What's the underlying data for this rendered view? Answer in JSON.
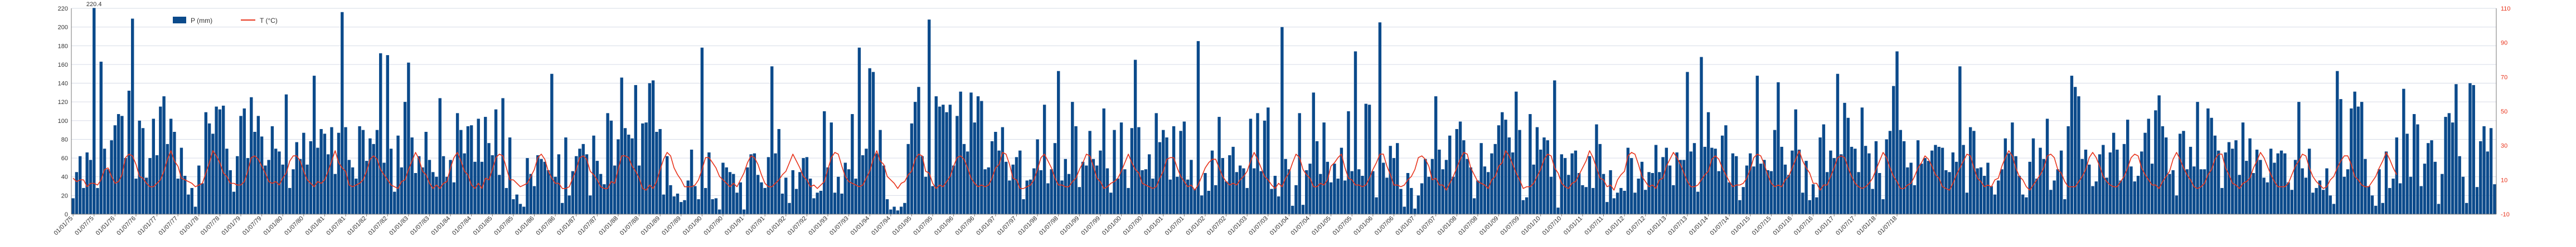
{
  "chart_data": {
    "type": "bar",
    "legend_position": "top-left",
    "grid": true,
    "series": [
      {
        "name": "P (mm)",
        "kind": "bar",
        "axis": "left",
        "color": "#0b4a8b"
      },
      {
        "name": "T (°C)",
        "kind": "line",
        "axis": "right",
        "color": "#e8341c"
      }
    ],
    "y_left": {
      "ticks": [
        0,
        20,
        40,
        60,
        80,
        100,
        120,
        140,
        160,
        180,
        200,
        220
      ],
      "lim": [
        0,
        220
      ]
    },
    "y_right": {
      "ticks": [
        -10,
        10,
        30,
        50,
        70,
        90,
        110
      ],
      "lim": [
        -10,
        110
      ]
    },
    "x_ticks": [
      "01/01/75",
      "01/07/75",
      "01/01/76",
      "01/07/76",
      "01/01/77",
      "01/07/77",
      "01/01/78",
      "01/07/78",
      "01/01/79",
      "01/07/79",
      "01/01/80",
      "01/07/80",
      "01/01/81",
      "01/07/81",
      "01/01/82",
      "01/07/82",
      "01/01/83",
      "01/07/83",
      "01/01/84",
      "01/07/84",
      "01/01/85",
      "01/07/85",
      "01/01/86",
      "01/07/86",
      "01/01/87",
      "01/07/87",
      "01/01/88",
      "01/07/88",
      "01/01/89",
      "01/07/89",
      "01/01/90",
      "01/07/90",
      "01/01/91",
      "01/07/91",
      "01/01/92",
      "01/07/92",
      "01/01/93",
      "01/07/93",
      "01/01/94",
      "01/07/94",
      "01/01/95",
      "01/07/95",
      "01/01/96",
      "01/07/96",
      "01/01/97",
      "01/07/97",
      "01/01/98",
      "01/07/98",
      "01/01/99",
      "01/07/99",
      "01/01/00",
      "01/07/00",
      "01/01/01",
      "01/07/01",
      "01/01/02",
      "01/07/02",
      "01/01/03",
      "01/07/03",
      "01/01/04",
      "01/07/04",
      "01/01/05",
      "01/07/05",
      "01/01/06",
      "01/07/06",
      "01/01/07",
      "01/07/07",
      "01/01/08",
      "01/07/08",
      "01/01/09",
      "01/07/09",
      "01/01/10",
      "01/07/10",
      "01/01/11",
      "01/07/11",
      "01/01/12",
      "01/07/12",
      "01/01/13",
      "01/07/13",
      "01/01/14",
      "01/07/14",
      "01/01/15",
      "01/07/15",
      "01/01/16",
      "01/07/16",
      "01/01/17",
      "01/07/17",
      "01/01/18",
      "01/07/18"
    ],
    "annotation": {
      "text": "220.4",
      "series": "P (mm)",
      "value": 220.4
    },
    "precip_mm": [
      17,
      45,
      62,
      28,
      66,
      58,
      220.4,
      28,
      163,
      70,
      48,
      79,
      95,
      107,
      105,
      60,
      132,
      209,
      38,
      100,
      92,
      39,
      60,
      102,
      63,
      115,
      126,
      75,
      102,
      88,
      38,
      71,
      41,
      21,
      28,
      8,
      52,
      33,
      109,
      97,
      86,
      115,
      112,
      116,
      70,
      47,
      24,
      62,
      105,
      113,
      60,
      125,
      88,
      105,
      83,
      52,
      58,
      94,
      70,
      67,
      53,
      128,
      28,
      48,
      77,
      59,
      87,
      53,
      78,
      148,
      71,
      91,
      86,
      64,
      93,
      43,
      87,
      216,
      93,
      58,
      50,
      38,
      94,
      90,
      57,
      81,
      75,
      90,
      172,
      55,
      170,
      70,
      24,
      84,
      50,
      120,
      162,
      82,
      44,
      62,
      50,
      88,
      58,
      45,
      40,
      124,
      62,
      40,
      58,
      34,
      108,
      90,
      65,
      94,
      95,
      56,
      102,
      56,
      104,
      76,
      63,
      112,
      42,
      124,
      28,
      82,
      16,
      21,
      11,
      8,
      60,
      43,
      30,
      63,
      59,
      56,
      47,
      150,
      40,
      64,
      12,
      82,
      20,
      46,
      62,
      70,
      75,
      64,
      20,
      84,
      57,
      43,
      32,
      108,
      100,
      52,
      80,
      146,
      92,
      85,
      81,
      138,
      52,
      97,
      98,
      140,
      143,
      88,
      91,
      21,
      62,
      31,
      19,
      22,
      13,
      15,
      36,
      69,
      30,
      16,
      178,
      28,
      66,
      16,
      17,
      5,
      55,
      50,
      45,
      43,
      23,
      34,
      5,
      50,
      64,
      65,
      42,
      34,
      28,
      61,
      158,
      65,
      91,
      22,
      39,
      12,
      47,
      27,
      45,
      60,
      61,
      38,
      17,
      23,
      25,
      110,
      50,
      98,
      23,
      40,
      22,
      55,
      48,
      107,
      38,
      178,
      63,
      70,
      156,
      152,
      65,
      90,
      52,
      16,
      5,
      8,
      4,
      8,
      12,
      75,
      97,
      120,
      136,
      62,
      40,
      208,
      30,
      126,
      115,
      117,
      109,
      117,
      52,
      105,
      131,
      75,
      67,
      130,
      98,
      126,
      121,
      48,
      50,
      78,
      88,
      68,
      93,
      56,
      36,
      53,
      61,
      68,
      16,
      36,
      37,
      49,
      80,
      47,
      117,
      33,
      48,
      76,
      153,
      36,
      59,
      43,
      120,
      94,
      29,
      56,
      52,
      89,
      59,
      52,
      68,
      113,
      49,
      23,
      90,
      38,
      98,
      48,
      28,
      92,
      165,
      93,
      47,
      48,
      64,
      38,
      108,
      77,
      90,
      82,
      37,
      94,
      40,
      89,
      99,
      37,
      58,
      27,
      185,
      20,
      44,
      25,
      68,
      31,
      104,
      60,
      35,
      63,
      72,
      45,
      52,
      49,
      28,
      102,
      49,
      108,
      46,
      100,
      114,
      27,
      41,
      19,
      200,
      59,
      48,
      9,
      31,
      108,
      10,
      47,
      54,
      130,
      78,
      43,
      98,
      56,
      34,
      54,
      38,
      71,
      36,
      110,
      46,
      174,
      48,
      41,
      118,
      117,
      46,
      18,
      205,
      55,
      39,
      73,
      60,
      76,
      27,
      8,
      44,
      28,
      6,
      20,
      33,
      59,
      40,
      59,
      126,
      69,
      48,
      58,
      84,
      40,
      91,
      99,
      79,
      59,
      50,
      17,
      36,
      76,
      51,
      45,
      65,
      75,
      95,
      109,
      101,
      82,
      66,
      131,
      90,
      15,
      18,
      107,
      53,
      93,
      69,
      82,
      79,
      40,
      143,
      7,
      64,
      60,
      42,
      65,
      68,
      44,
      31,
      29,
      62,
      28,
      96,
      75,
      43,
      13,
      47,
      17,
      23,
      28,
      25,
      71,
      60,
      23,
      38,
      56,
      26,
      45,
      44,
      74,
      45,
      61,
      71,
      52,
      31,
      66,
      58,
      58,
      152,
      67,
      76,
      24,
      168,
      72,
      109,
      71,
      70,
      46,
      84,
      95,
      34,
      65,
      62,
      15,
      29,
      52,
      65,
      51,
      148,
      54,
      58,
      47,
      46,
      90,
      141,
      72,
      53,
      42,
      68,
      112,
      69,
      23,
      57,
      15,
      32,
      18,
      82,
      96,
      45,
      68,
      60,
      150,
      64,
      119,
      103,
      72,
      70,
      45,
      114,
      73,
      65,
      27,
      78,
      44,
      16,
      80,
      89,
      137,
      174,
      90,
      78,
      50,
      55,
      31,
      79,
      54,
      60,
      57,
      68,
      74,
      72,
      71,
      47,
      45,
      66,
      56,
      158,
      74,
      23,
      93,
      89,
      49,
      50,
      41,
      55,
      30,
      21,
      36,
      48,
      81,
      65,
      98,
      62,
      41,
      21,
      18,
      56,
      81,
      38,
      71,
      59,
      102,
      26,
      36,
      48,
      68,
      16,
      94,
      148,
      136,
      126,
      59,
      69,
      53,
      30,
      35,
      64,
      74,
      39,
      66,
      87,
      69,
      36,
      75,
      101,
      51,
      35,
      41,
      67,
      87,
      102,
      54,
      111,
      127,
      94,
      82,
      43,
      47,
      20,
      86,
      89,
      48,
      72,
      51,
      120,
      48,
      48,
      113,
      103,
      84,
      68,
      28,
      66,
      77,
      70,
      79,
      42,
      98,
      57,
      81,
      44,
      69,
      58,
      39,
      34,
      70,
      55,
      65,
      68,
      65,
      34,
      26,
      58,
      120,
      49,
      39,
      70,
      23,
      28,
      36,
      26,
      49,
      20,
      11,
      153,
      123,
      40,
      48,
      113,
      131,
      115,
      120,
      59,
      30,
      20,
      9,
      48,
      12,
      67,
      28,
      38,
      82,
      33,
      134,
      86,
      40,
      107,
      96,
      30,
      54,
      76,
      79,
      56,
      11,
      43,
      104,
      108,
      98,
      139,
      62,
      40,
      12,
      140,
      138,
      29,
      78,
      94,
      67,
      92,
      32
    ],
    "temp_c": [
      11,
      9,
      10,
      10,
      6,
      8,
      8,
      7,
      10,
      16,
      17,
      12,
      8,
      9,
      13,
      23,
      25,
      24,
      19,
      12,
      11,
      8,
      6,
      6,
      8,
      10,
      15,
      22,
      27,
      21,
      18,
      11,
      10,
      9,
      8,
      6,
      7,
      8,
      14,
      20,
      27,
      24,
      20,
      14,
      12,
      8,
      8,
      7,
      7,
      9,
      15,
      23,
      24,
      22,
      18,
      14,
      9,
      8,
      9,
      7,
      11,
      14,
      21,
      24,
      24,
      21,
      15,
      10,
      8,
      6,
      9,
      8,
      10,
      15,
      21,
      27,
      20,
      17,
      15,
      7,
      6,
      7,
      8,
      10,
      15,
      22,
      24,
      22,
      16,
      13,
      10,
      7,
      6,
      5,
      9,
      10,
      16,
      21,
      26,
      22,
      15,
      13,
      8,
      5,
      7,
      5,
      8,
      9,
      17,
      23,
      26,
      21,
      15,
      13,
      7,
      5,
      8,
      5,
      11,
      10,
      16,
      23,
      25,
      24,
      17,
      10,
      10,
      8,
      6,
      7,
      8,
      12,
      16,
      23,
      25,
      22,
      15,
      11,
      8,
      8,
      5,
      5,
      6,
      11,
      16,
      23,
      24,
      22,
      15,
      13,
      10,
      6,
      5,
      5,
      9,
      8,
      16,
      24,
      24,
      23,
      18,
      15,
      11,
      5,
      4,
      7,
      5,
      9,
      16,
      22,
      26,
      24,
      17,
      13,
      10,
      6,
      6,
      6,
      7,
      10,
      16,
      23,
      23,
      20,
      17,
      12,
      10,
      8,
      6,
      8,
      6,
      10,
      14,
      20,
      24,
      23,
      19,
      13,
      8,
      6,
      6,
      8,
      10,
      13,
      15,
      20,
      25,
      21,
      17,
      12,
      10,
      6,
      7,
      5,
      7,
      9,
      16,
      23,
      26,
      25,
      18,
      12,
      9,
      8,
      7,
      6,
      7,
      11,
      15,
      22,
      27,
      21,
      19,
      12,
      10,
      8,
      5,
      8,
      9,
      13,
      15,
      22,
      25,
      24,
      15,
      14,
      8,
      5,
      7,
      6,
      9,
      12,
      18,
      23,
      24,
      22,
      17,
      11,
      8,
      6,
      7,
      6,
      7,
      11,
      17,
      19,
      26,
      25,
      19,
      11,
      10,
      5,
      5,
      6,
      7,
      10,
      16,
      23,
      25,
      21,
      17,
      11,
      7,
      7,
      6,
      6,
      9,
      11,
      16,
      20,
      25,
      24,
      18,
      11,
      9,
      5,
      6,
      8,
      9,
      11,
      15,
      20,
      25,
      20,
      16,
      14,
      8,
      7,
      6,
      5,
      6,
      11,
      15,
      22,
      23,
      23,
      17,
      12,
      9,
      6,
      7,
      4,
      7,
      12,
      17,
      20,
      22,
      22,
      17,
      12,
      9,
      7,
      8,
      7,
      10,
      12,
      15,
      21,
      26,
      22,
      17,
      12,
      10,
      7,
      5,
      8,
      6,
      11,
      14,
      20,
      25,
      23,
      16,
      13,
      11,
      6,
      6,
      8,
      7,
      10,
      18,
      20,
      23,
      25,
      17,
      11,
      10,
      7,
      7,
      6,
      7,
      11,
      16,
      20,
      25,
      25,
      18,
      13,
      7,
      7,
      6,
      7,
      10,
      12,
      16,
      23,
      24,
      22,
      18,
      10,
      11,
      7,
      7,
      4,
      8,
      12,
      17,
      22,
      26,
      25,
      17,
      13,
      9,
      8,
      7,
      5,
      10,
      12,
      18,
      20,
      27,
      24,
      19,
      14,
      10,
      5,
      6,
      6,
      8,
      12,
      16,
      22,
      25,
      24,
      17,
      14,
      8,
      6,
      5,
      8,
      9,
      13,
      17,
      21,
      27,
      23,
      17,
      11,
      10,
      6,
      7,
      4,
      10,
      13,
      15,
      24,
      26,
      25,
      19,
      12,
      9,
      6,
      7,
      5,
      10,
      11,
      18,
      22,
      26,
      23,
      19,
      14,
      9,
      6,
      6,
      7,
      10,
      13,
      15,
      22,
      24,
      22,
      17,
      13,
      9,
      6,
      7,
      7,
      8,
      11,
      16,
      23,
      25,
      24,
      19,
      13,
      8,
      6,
      7,
      6,
      10,
      12,
      17,
      22,
      27,
      21,
      17,
      14,
      8,
      8,
      4,
      7,
      7,
      12,
      17,
      23,
      24,
      23,
      17,
      12,
      8,
      6,
      5,
      6,
      8,
      11,
      16,
      21,
      26,
      23,
      17,
      12,
      9,
      5,
      5,
      7,
      8,
      12,
      17,
      20,
      24,
      22,
      18,
      13,
      11,
      6,
      5,
      4,
      8,
      13,
      17,
      21,
      25,
      24,
      17,
      11,
      9,
      6,
      7,
      6,
      10,
      11,
      18,
      23,
      27,
      24,
      17,
      12,
      10,
      6,
      4,
      7,
      10,
      13,
      17,
      24,
      25,
      23,
      16,
      14,
      9,
      6,
      6,
      6,
      9,
      12,
      16,
      23,
      26,
      23,
      18,
      12,
      9,
      7,
      6,
      6,
      9,
      12,
      17,
      23,
      25,
      24,
      17,
      13,
      10,
      7,
      7,
      5,
      9,
      12,
      15,
      22,
      26,
      22,
      17,
      13,
      10,
      6,
      5,
      6,
      8,
      13,
      16,
      22,
      25,
      25,
      17,
      13,
      8,
      7,
      5,
      8,
      9,
      11,
      17,
      21,
      26,
      23,
      18,
      13,
      9,
      6,
      6,
      6,
      8,
      13,
      18,
      21,
      25,
      24,
      17,
      12,
      9,
      7,
      5,
      6,
      10,
      12,
      17,
      21,
      24,
      24,
      19,
      12,
      10,
      7,
      6,
      6,
      9,
      12,
      17,
      21,
      26,
      22,
      17,
      13
    ]
  }
}
